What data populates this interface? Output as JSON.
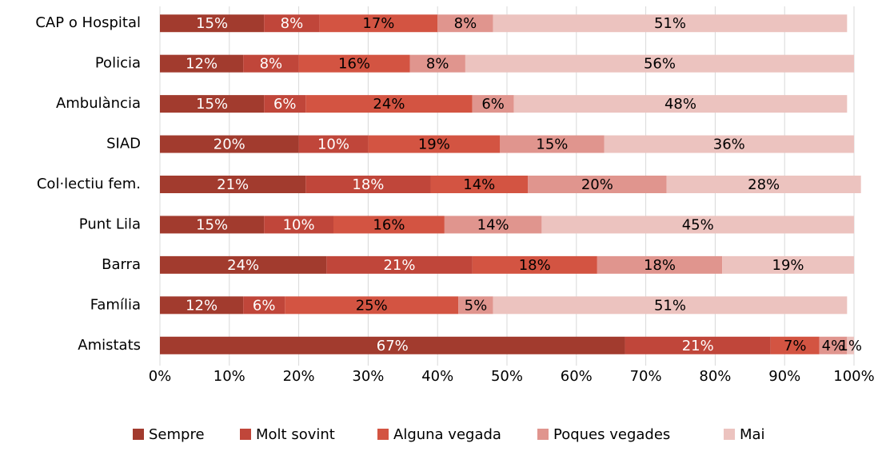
{
  "chart_data": {
    "type": "stacked-barh",
    "categories": [
      "CAP o Hospital",
      "Policia",
      "Ambulància",
      "SIAD",
      "Col·lectiu fem.",
      "Punt Lila",
      "Barra",
      "Família",
      "Amistats"
    ],
    "series": [
      {
        "name": "Sempre",
        "color": "#a23b2e",
        "values": [
          15,
          12,
          15,
          20,
          21,
          15,
          24,
          12,
          67
        ],
        "value_labels": [
          "15%",
          "12%",
          "15%",
          "20%",
          "21%",
          "15%",
          "24%",
          "12%",
          "67%"
        ]
      },
      {
        "name": "Molt sovint",
        "color": "#c0463a",
        "values": [
          8,
          8,
          6,
          10,
          18,
          10,
          21,
          6,
          21
        ],
        "value_labels": [
          "8%",
          "8%",
          "6%",
          "10%",
          "18%",
          "10%",
          "21%",
          "6%",
          "21%"
        ]
      },
      {
        "name": "Alguna vegada",
        "color": "#d35442",
        "values": [
          17,
          16,
          24,
          19,
          14,
          16,
          18,
          25,
          7
        ],
        "value_labels": [
          "17%",
          "16%",
          "24%",
          "19%",
          "14%",
          "16%",
          "18%",
          "25%",
          "7%"
        ]
      },
      {
        "name": "Poques vegades",
        "color": "#e0958e",
        "values": [
          8,
          8,
          6,
          15,
          20,
          14,
          18,
          5,
          4
        ],
        "value_labels": [
          "8%",
          "8%",
          "6%",
          "15%",
          "20%",
          "14%",
          "18%",
          "5%",
          "4%"
        ]
      },
      {
        "name": "Mai",
        "color": "#ecc3bf",
        "values": [
          51,
          56,
          48,
          36,
          28,
          45,
          19,
          51,
          1
        ],
        "value_labels": [
          "51%",
          "56%",
          "48%",
          "36%",
          "28%",
          "45%",
          "19%",
          "51%",
          "1%"
        ]
      }
    ],
    "xlim": [
      0,
      100
    ],
    "xticks": [
      {
        "value": 0,
        "label": "0%"
      },
      {
        "value": 10,
        "label": "10%"
      },
      {
        "value": 20,
        "label": "20%"
      },
      {
        "value": 30,
        "label": "30%"
      },
      {
        "value": 40,
        "label": "40%"
      },
      {
        "value": 50,
        "label": "50%"
      },
      {
        "value": 60,
        "label": "60%"
      },
      {
        "value": 70,
        "label": "70%"
      },
      {
        "value": 80,
        "label": "80%"
      },
      {
        "value": 90,
        "label": "90%"
      },
      {
        "value": 100,
        "label": "100%"
      }
    ],
    "grid": true,
    "legend": "bottom"
  }
}
